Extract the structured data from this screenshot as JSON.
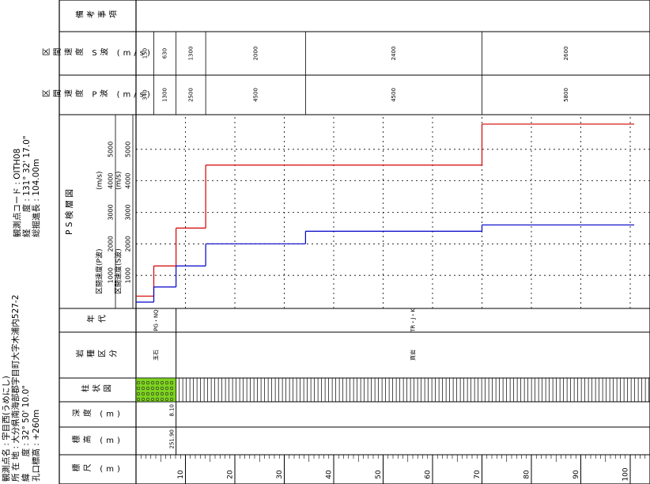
{
  "header": {
    "station_name": "観測点名 : 宇目西(うめにし)",
    "address": "所 在 地 : 大分県南海部郡宇目町大字木浦内527-2",
    "latitude": "緯　　度 : 32° 50' 10.0\"",
    "elevation": "孔口標高 : +260m",
    "station_code": "観測点コード : OITH08",
    "longitude": "経　　度 : 131° 32' 17.0\"",
    "total_depth": "総掘進長 : 104.00m"
  },
  "columns": {
    "scale": "標尺 (m)",
    "elevation": "標高 (m)",
    "depth": "深度 (m)",
    "columnar": "柱状図",
    "rock": "岩種区分",
    "age": "年代",
    "p": "区間速度 P波 (m/s)",
    "s": "区間速度 S波 (m/s)",
    "remarks": "備考事項"
  },
  "geology": {
    "boundary_depth_label": "8.10",
    "boundary_elevation_label": "251.90",
    "rock_units": [
      {
        "label": "玉石",
        "top": 0,
        "bottom": 8.1
      },
      {
        "label": "頁岩",
        "top": 8.1,
        "bottom": 104
      }
    ],
    "age_units": [
      {
        "label": "PG・NQ",
        "top": 0,
        "bottom": 8.1
      },
      {
        "label": "TR・J・K",
        "top": 8.1,
        "bottom": 104
      }
    ]
  },
  "chart_data": {
    "type": "step",
    "title": "P S 検 層 図",
    "unit": "(m/s)",
    "xlim": [
      0,
      104
    ],
    "xticks": [
      10,
      20,
      30,
      40,
      50,
      60,
      70,
      80,
      90,
      100
    ],
    "ylim": [
      0,
      6100
    ],
    "yticks": [
      1000,
      2000,
      3000,
      4000,
      5000
    ],
    "grid": true,
    "layers": [
      {
        "top": 0,
        "bottom": 3.6
      },
      {
        "top": 3.6,
        "bottom": 8.1
      },
      {
        "top": 8.1,
        "bottom": 14.1
      },
      {
        "top": 14.1,
        "bottom": 34.3
      },
      {
        "top": 34.3,
        "bottom": 70
      },
      {
        "top": 70,
        "bottom": 104
      }
    ],
    "series": [
      {
        "name": "区間速度(P波)",
        "color": "#d40000",
        "values": [
          340,
          1300,
          2500,
          4500,
          4500,
          5800
        ]
      },
      {
        "name": "区間速度(S波)",
        "color": "#0000c8",
        "values": [
          150,
          630,
          1300,
          2000,
          2400,
          2600
        ]
      }
    ]
  }
}
